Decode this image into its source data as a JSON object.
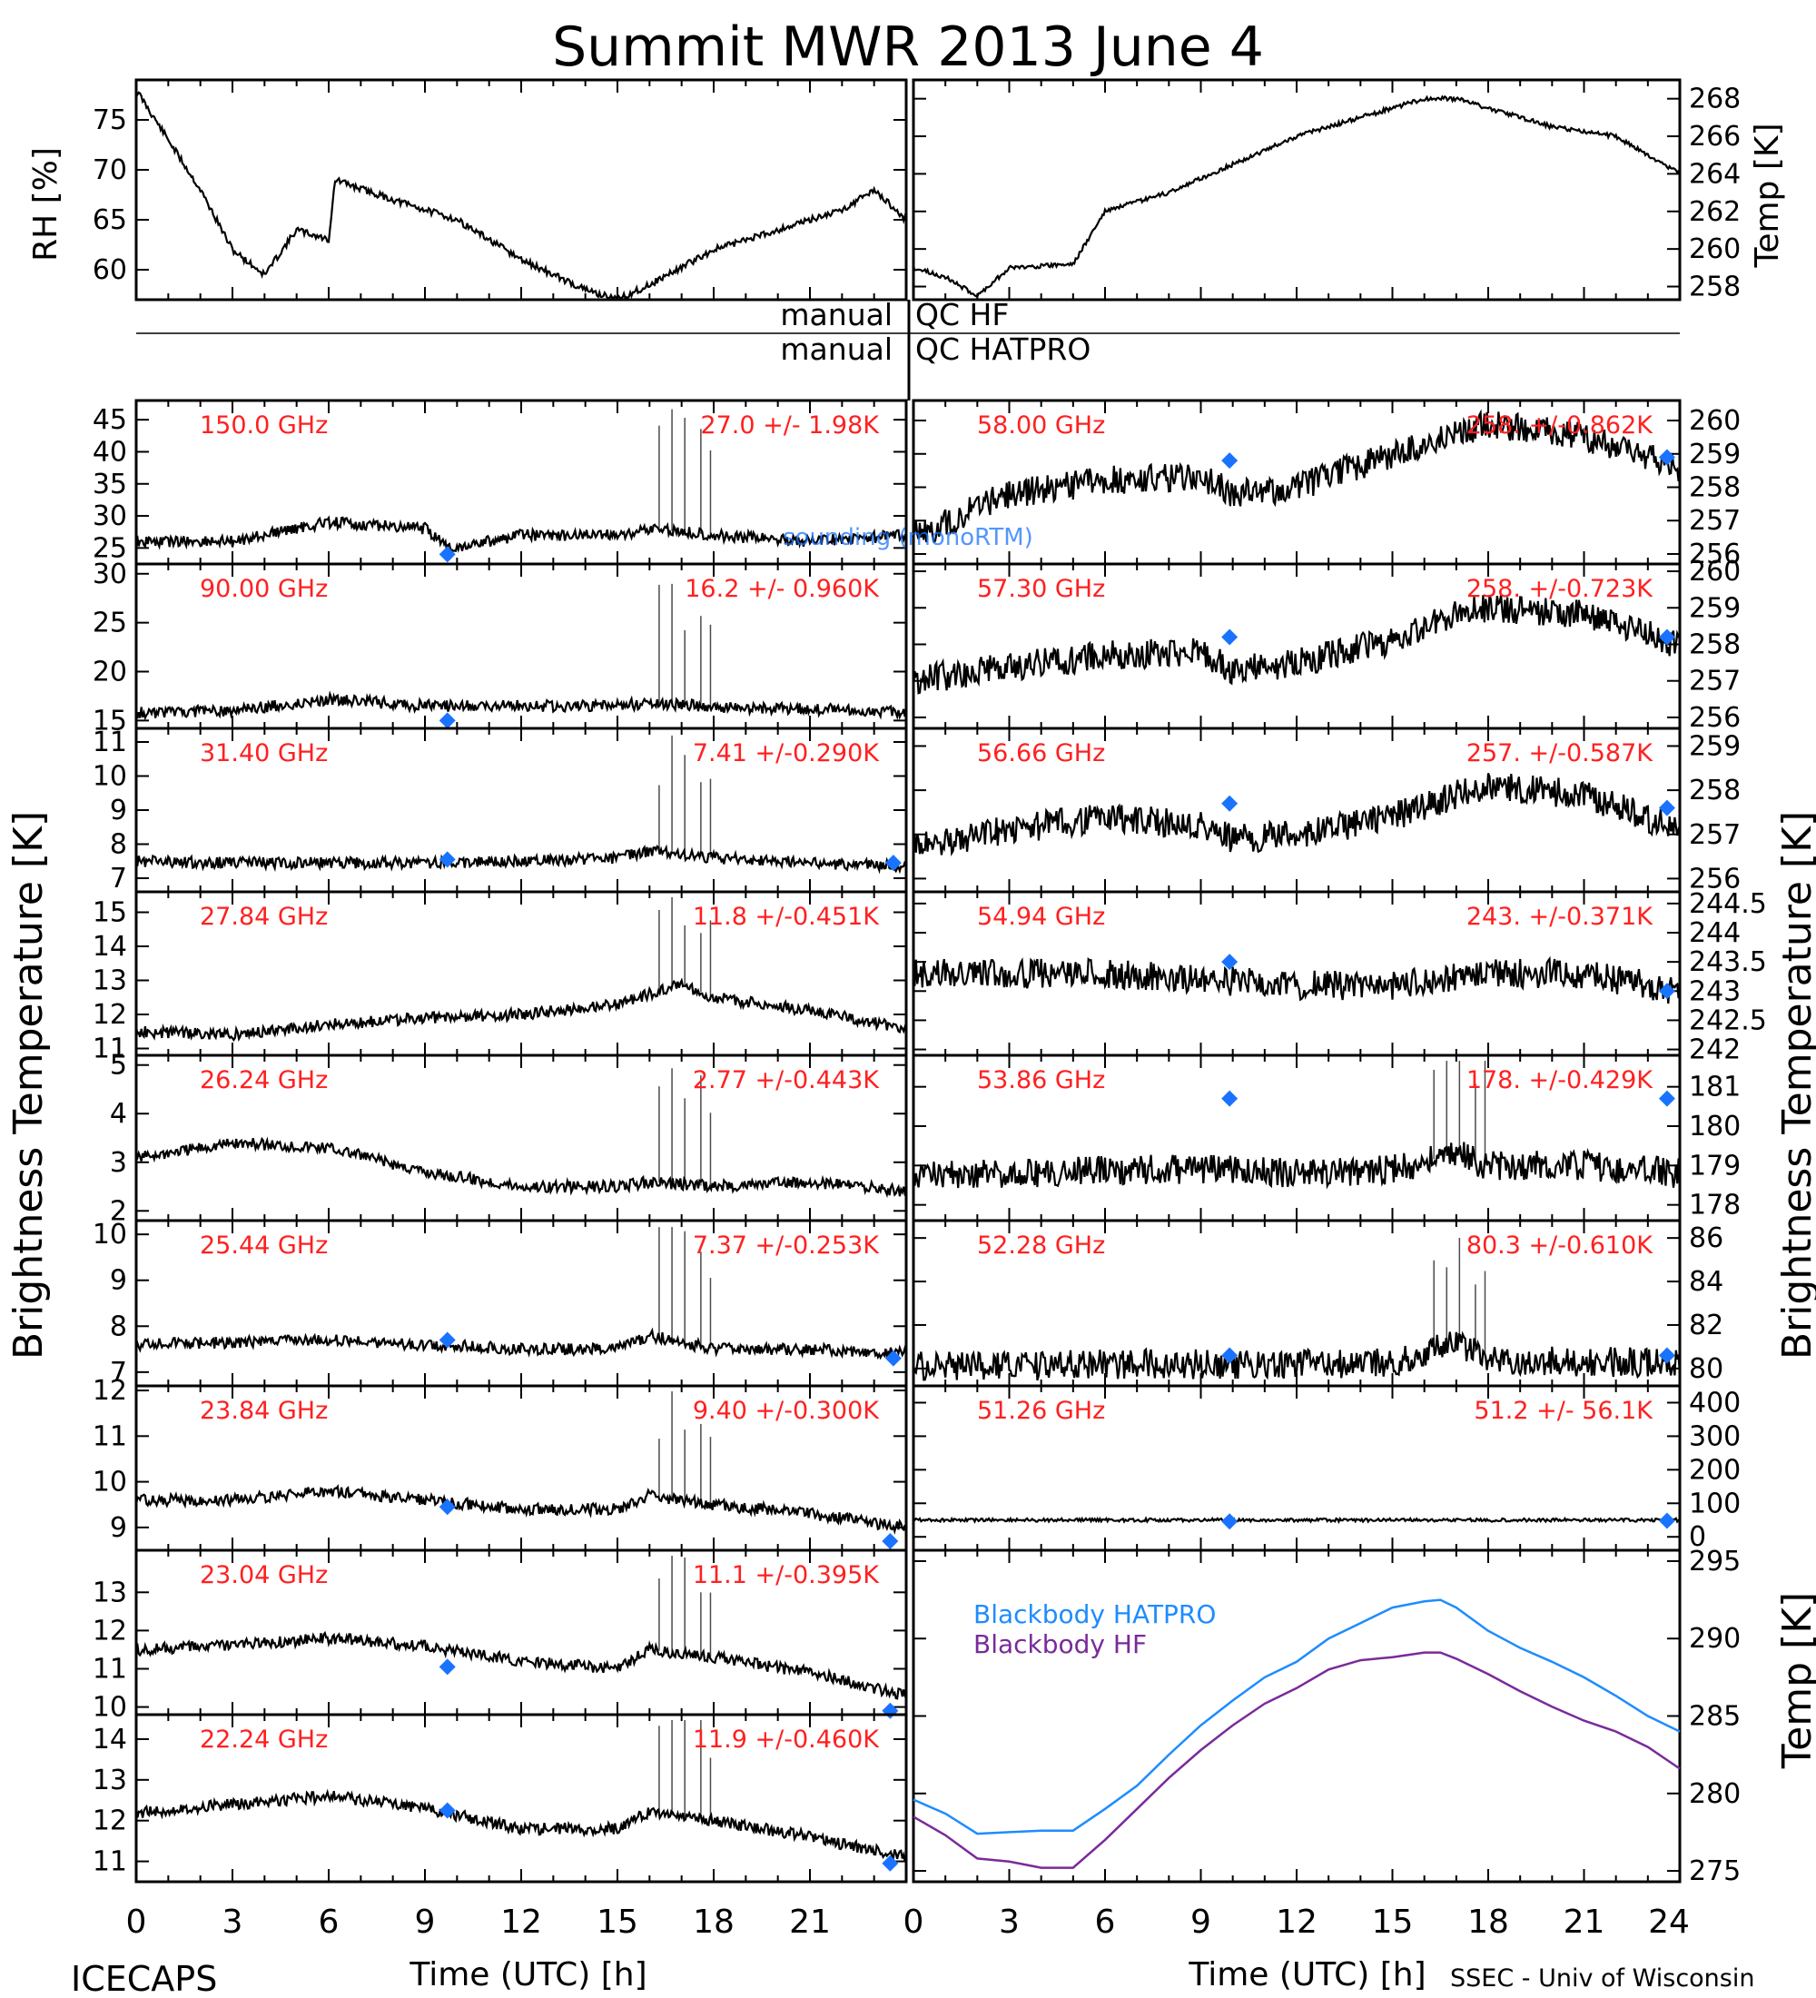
{
  "title": "Summit MWR 2013 June  4",
  "footer": {
    "left": "ICECAPS",
    "right": "SSEC - Univ of Wisconsin"
  },
  "qc_labels": {
    "manual1": "manual",
    "hf": "QC HF",
    "manual2": "manual",
    "hatpro": "QC HATPRO"
  },
  "axis_labels": {
    "rh": "RH [%]",
    "temp_top": "Temp [K]",
    "bt_left": "Brightness Temperature [K]",
    "bt_right": "Brightness Temperature [K]",
    "temp_bottom": "Temp [K]",
    "time_left": "Time (UTC) [h]",
    "time_right": "Time (UTC) [h]"
  },
  "overlay_label": "sounding (monoRTM)",
  "colors": {
    "label_red": "#ff2020",
    "marker_blue": "#1a73ff",
    "hatpro_line": "#1e8cff",
    "hf_line": "#7a2a9a",
    "trace": "#000000"
  },
  "chart_data": [
    {
      "type": "line",
      "panel": "rh",
      "ylabel": "RH [%]",
      "x": [
        0,
        1,
        2,
        3,
        4,
        5,
        6,
        6.2,
        8,
        10,
        12,
        14,
        15,
        16,
        18,
        20,
        22,
        23,
        24
      ],
      "y": [
        78,
        73,
        68,
        62,
        59.5,
        64,
        63,
        69,
        67,
        65,
        61,
        58,
        57,
        58.5,
        62,
        64,
        66,
        68,
        65
      ],
      "xlim": [
        0,
        24
      ],
      "ylim": [
        57,
        79
      ],
      "yticks": [
        60,
        65,
        70,
        75
      ]
    },
    {
      "type": "line",
      "panel": "temp_surface",
      "ylabel": "Temp [K]",
      "x": [
        0,
        1,
        2,
        3,
        5,
        6,
        8,
        10,
        12,
        15,
        16,
        17,
        18,
        20,
        22,
        24
      ],
      "y": [
        259,
        258.5,
        257.5,
        259,
        259.2,
        262,
        263,
        264.5,
        266,
        267.5,
        268,
        268,
        267.5,
        266.5,
        266,
        264
      ],
      "xlim": [
        0,
        24
      ],
      "ylim": [
        257.3,
        269
      ],
      "yticks": [
        258,
        260,
        262,
        264,
        266,
        268
      ]
    },
    {
      "type": "line",
      "panel": "bt_left",
      "channels": [
        {
          "freq": "150.0 GHz",
          "stats": "27.0 +/-  1.98K",
          "ylim": [
            22.5,
            48
          ],
          "yticks": [
            25,
            30,
            35,
            40,
            45
          ],
          "x": [
            0,
            3,
            6,
            9,
            9.8,
            12,
            15,
            16,
            18,
            21,
            24
          ],
          "y": [
            26,
            26,
            29,
            28,
            25,
            27,
            27,
            28,
            27,
            26,
            27
          ],
          "sounding": [
            {
              "x": 9.7,
              "y": 24
            }
          ]
        },
        {
          "freq": "90.00 GHz",
          "stats": "16.2 +/- 0.960K",
          "ylim": [
            14.2,
            31
          ],
          "yticks": [
            15,
            20,
            25,
            30
          ],
          "x": [
            0,
            3,
            6,
            9,
            12,
            15,
            16,
            18,
            21,
            24
          ],
          "y": [
            15.8,
            16,
            17.2,
            16.5,
            16.5,
            16.5,
            16.8,
            16.4,
            16.2,
            15.8
          ],
          "sounding": [
            {
              "x": 9.7,
              "y": 15
            }
          ]
        },
        {
          "freq": "31.40 GHz",
          "stats": "7.41 +/-0.290K",
          "ylim": [
            6.6,
            11.4
          ],
          "yticks": [
            7,
            8,
            9,
            10,
            11
          ],
          "x": [
            0,
            3,
            6,
            9,
            12,
            15,
            16,
            18,
            21,
            24
          ],
          "y": [
            7.5,
            7.45,
            7.45,
            7.45,
            7.5,
            7.6,
            7.8,
            7.6,
            7.45,
            7.35
          ],
          "sounding": [
            {
              "x": 9.7,
              "y": 7.55
            },
            {
              "x": 23.6,
              "y": 7.45
            }
          ]
        },
        {
          "freq": "27.84 GHz",
          "stats": "11.8 +/-0.451K",
          "ylim": [
            10.8,
            15.6
          ],
          "yticks": [
            11,
            12,
            13,
            14,
            15
          ],
          "x": [
            0,
            3,
            6,
            9,
            12,
            15,
            16,
            17,
            18,
            21,
            24
          ],
          "y": [
            11.5,
            11.4,
            11.7,
            11.9,
            12,
            12.3,
            12.6,
            12.9,
            12.5,
            12.1,
            11.6
          ],
          "sounding": []
        },
        {
          "freq": "26.24 GHz",
          "stats": "2.77 +/-0.443K",
          "ylim": [
            1.8,
            5.2
          ],
          "yticks": [
            2,
            3,
            4,
            5
          ],
          "x": [
            0,
            3,
            6,
            9,
            12,
            15,
            16,
            18,
            21,
            24
          ],
          "y": [
            3.1,
            3.4,
            3.3,
            2.8,
            2.5,
            2.5,
            2.6,
            2.5,
            2.6,
            2.4
          ],
          "sounding": []
        },
        {
          "freq": "25.44 GHz",
          "stats": "7.37 +/-0.253K",
          "ylim": [
            6.7,
            10.3
          ],
          "yticks": [
            7,
            8,
            9,
            10
          ],
          "x": [
            0,
            3,
            6,
            9,
            12,
            15,
            16,
            18,
            21,
            24
          ],
          "y": [
            7.6,
            7.65,
            7.7,
            7.6,
            7.5,
            7.5,
            7.8,
            7.5,
            7.5,
            7.4
          ],
          "sounding": [
            {
              "x": 9.7,
              "y": 7.7
            },
            {
              "x": 23.6,
              "y": 7.3
            }
          ]
        },
        {
          "freq": "23.84 GHz",
          "stats": "9.40 +/-0.300K",
          "ylim": [
            8.5,
            12.1
          ],
          "yticks": [
            9,
            10,
            11,
            12
          ],
          "x": [
            0,
            3,
            6,
            9,
            12,
            15,
            16,
            18,
            21,
            24
          ],
          "y": [
            9.6,
            9.6,
            9.8,
            9.6,
            9.4,
            9.4,
            9.7,
            9.5,
            9.3,
            9.0
          ],
          "sounding": [
            {
              "x": 9.7,
              "y": 9.45
            },
            {
              "x": 23.5,
              "y": 8.7
            }
          ]
        },
        {
          "freq": "23.04 GHz",
          "stats": "11.1 +/-0.395K",
          "ylim": [
            9.8,
            14.1
          ],
          "yticks": [
            10,
            11,
            12,
            13
          ],
          "x": [
            0,
            3,
            6,
            9,
            12,
            15,
            16,
            18,
            21,
            24
          ],
          "y": [
            11.5,
            11.6,
            11.8,
            11.6,
            11.2,
            11,
            11.5,
            11.3,
            10.9,
            10.3
          ],
          "sounding": [
            {
              "x": 9.7,
              "y": 11.05
            },
            {
              "x": 23.5,
              "y": 9.9
            }
          ]
        },
        {
          "freq": "22.24 GHz",
          "stats": "11.9 +/-0.460K",
          "ylim": [
            10.5,
            14.6
          ],
          "yticks": [
            11,
            12,
            13,
            14
          ],
          "x": [
            0,
            3,
            6,
            9,
            12,
            15,
            16,
            18,
            21,
            24
          ],
          "y": [
            12.2,
            12.4,
            12.6,
            12.3,
            11.8,
            11.8,
            12.2,
            12,
            11.6,
            11.1
          ],
          "sounding": [
            {
              "x": 9.7,
              "y": 12.25
            },
            {
              "x": 23.5,
              "y": 10.95
            }
          ]
        }
      ]
    },
    {
      "type": "line",
      "panel": "bt_right",
      "channels": [
        {
          "freq": "58.00 GHz",
          "stats": "258. +/-0.862K",
          "ylim": [
            255.7,
            260.6
          ],
          "yticks": [
            256,
            257,
            258,
            259,
            260
          ],
          "x": [
            0,
            3,
            6,
            9,
            10,
            12,
            15,
            17,
            18,
            21,
            24
          ],
          "y": [
            256.5,
            257.8,
            258.2,
            258.3,
            257.8,
            258,
            259,
            259.6,
            259.9,
            259.5,
            258.6
          ],
          "sounding": [
            {
              "x": 9.9,
              "y": 258.8
            },
            {
              "x": 23.6,
              "y": 258.9
            }
          ]
        },
        {
          "freq": "57.30 GHz",
          "stats": "258. +/-0.723K",
          "ylim": [
            255.7,
            260.2
          ],
          "yticks": [
            256,
            257,
            258,
            259,
            260
          ],
          "x": [
            0,
            3,
            6,
            9,
            10,
            12,
            15,
            17,
            18,
            21,
            24
          ],
          "y": [
            257,
            257.4,
            257.7,
            257.8,
            257.3,
            257.5,
            258.1,
            258.8,
            259,
            258.8,
            258
          ],
          "sounding": [
            {
              "x": 9.9,
              "y": 258.2
            },
            {
              "x": 23.6,
              "y": 258.2
            }
          ]
        },
        {
          "freq": "56.66 GHz",
          "stats": "257. +/-0.587K",
          "ylim": [
            255.7,
            259.4
          ],
          "yticks": [
            256,
            257,
            258,
            259
          ],
          "x": [
            0,
            3,
            6,
            9,
            10,
            12,
            15,
            17,
            18,
            21,
            24
          ],
          "y": [
            256.7,
            257.1,
            257.4,
            257.2,
            256.9,
            257,
            257.4,
            257.9,
            258.1,
            257.9,
            257.1
          ],
          "sounding": [
            {
              "x": 9.9,
              "y": 257.7
            },
            {
              "x": 23.6,
              "y": 257.6
            }
          ]
        },
        {
          "freq": "54.94 GHz",
          "stats": "243. +/-0.371K",
          "ylim": [
            241.9,
            244.7
          ],
          "yticks": [
            242.0,
            242.5,
            243.0,
            243.5,
            244.0,
            244.5
          ],
          "x": [
            0,
            3,
            6,
            9,
            12,
            15,
            18,
            21,
            24
          ],
          "y": [
            243.3,
            243.3,
            243.3,
            243.2,
            243.1,
            243.1,
            243.3,
            243.3,
            243
          ],
          "sounding": [
            {
              "x": 9.9,
              "y": 243.5
            },
            {
              "x": 23.6,
              "y": 243.0
            }
          ]
        },
        {
          "freq": "53.86 GHz",
          "stats": "178. +/-0.429K",
          "ylim": [
            177.6,
            181.8
          ],
          "yticks": [
            178,
            179,
            180,
            181
          ],
          "x": [
            0,
            3,
            6,
            9,
            12,
            15,
            17,
            18,
            21,
            24
          ],
          "y": [
            178.7,
            178.8,
            178.9,
            178.9,
            178.8,
            178.9,
            179.3,
            179,
            179,
            178.8
          ],
          "sounding": [
            {
              "x": 9.9,
              "y": 180.7
            },
            {
              "x": 23.6,
              "y": 180.7
            }
          ]
        },
        {
          "freq": "52.28 GHz",
          "stats": "80.3 +/-0.610K",
          "ylim": [
            79.2,
            86.8
          ],
          "yticks": [
            80,
            82,
            84,
            86
          ],
          "x": [
            0,
            3,
            6,
            9,
            12,
            15,
            17,
            18,
            21,
            24
          ],
          "y": [
            80.1,
            80.1,
            80.2,
            80.2,
            80.2,
            80.3,
            81.3,
            80.4,
            80.3,
            80.3
          ],
          "sounding": [
            {
              "x": 9.9,
              "y": 80.6
            },
            {
              "x": 23.6,
              "y": 80.6
            }
          ]
        },
        {
          "freq": "51.26 GHz",
          "stats": "51.2 +/- 56.1K",
          "ylim": [
            -40,
            450
          ],
          "yticks": [
            0,
            100,
            200,
            300,
            400
          ],
          "x": [
            0,
            3,
            6,
            9,
            12,
            15,
            18,
            21,
            24
          ],
          "y": [
            50,
            50,
            50,
            50,
            50,
            50,
            50,
            50,
            50
          ],
          "sounding": [
            {
              "x": 9.9,
              "y": 46
            },
            {
              "x": 23.6,
              "y": 48
            }
          ]
        }
      ]
    },
    {
      "type": "line",
      "panel": "blackbody",
      "ylabel": "Temp [K]",
      "series": [
        {
          "name": "Blackbody HATPRO",
          "x": [
            0,
            1,
            2,
            3,
            4,
            5,
            6,
            7,
            8,
            9,
            10,
            11,
            12,
            13,
            14,
            15,
            16,
            16.5,
            17,
            18,
            19,
            20,
            21,
            22,
            23,
            24
          ],
          "y": [
            279.6,
            278.7,
            277.4,
            277.5,
            277.6,
            277.6,
            279,
            280.5,
            282.5,
            284.4,
            286,
            287.5,
            288.5,
            290,
            291,
            292,
            292.4,
            292.5,
            292,
            290.5,
            289.4,
            288.5,
            287.5,
            286.3,
            285,
            284
          ]
        },
        {
          "name": "Blackbody HF",
          "x": [
            0,
            1,
            2,
            3,
            4,
            5,
            6,
            7,
            8,
            9,
            10,
            11,
            12,
            13,
            14,
            15,
            16,
            16.5,
            17,
            18,
            19,
            20,
            21,
            22,
            23,
            24
          ],
          "y": [
            278.5,
            277.3,
            275.8,
            275.6,
            275.2,
            275.2,
            277,
            279,
            281,
            282.8,
            284.4,
            285.8,
            286.8,
            288,
            288.6,
            288.8,
            289.1,
            289.1,
            288.7,
            287.7,
            286.6,
            285.6,
            284.7,
            284,
            283,
            281.6
          ]
        }
      ],
      "xlim": [
        0,
        24
      ],
      "ylim": [
        274.3,
        295.7
      ],
      "yticks": [
        275,
        280,
        285,
        290,
        295
      ]
    }
  ],
  "xaxis": {
    "left_ticks": [
      "0",
      "3",
      "6",
      "9",
      "12",
      "15",
      "18",
      "21"
    ],
    "right_ticks": [
      "0",
      "3",
      "6",
      "9",
      "12",
      "15",
      "18",
      "21",
      "24"
    ]
  }
}
